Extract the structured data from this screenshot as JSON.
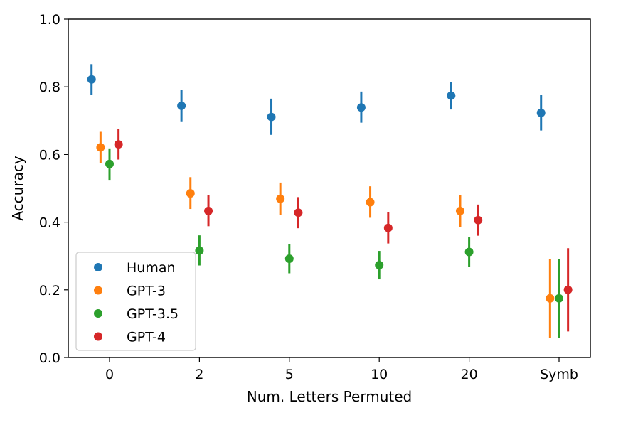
{
  "chart_data": {
    "type": "scatter",
    "title": "",
    "xlabel": "Num. Letters Permuted",
    "ylabel": "Accuracy",
    "categories": [
      "0",
      "2",
      "5",
      "10",
      "20",
      "Symb"
    ],
    "ylim": [
      0.0,
      1.0
    ],
    "yticks": [
      0.0,
      0.2,
      0.4,
      0.6,
      0.8,
      1.0
    ],
    "ytick_labels": [
      "0.0",
      "0.2",
      "0.4",
      "0.6",
      "0.8",
      "1.0"
    ],
    "grid": false,
    "legend_position": "lower-left",
    "error_bars": true,
    "series": [
      {
        "name": "Human",
        "color": "#1f77b4",
        "offset": -0.2,
        "values": [
          0.822,
          0.744,
          0.711,
          0.739,
          0.774,
          0.723
        ],
        "lower": [
          0.777,
          0.698,
          0.658,
          0.694,
          0.733,
          0.671
        ],
        "upper": [
          0.867,
          0.791,
          0.765,
          0.786,
          0.815,
          0.776
        ]
      },
      {
        "name": "GPT-3",
        "color": "#ff7f0e",
        "offset": -0.1,
        "values": [
          0.621,
          0.485,
          0.469,
          0.459,
          0.433,
          0.175
        ],
        "lower": [
          0.575,
          0.439,
          0.421,
          0.413,
          0.386,
          0.058
        ],
        "upper": [
          0.667,
          0.533,
          0.517,
          0.506,
          0.48,
          0.292
        ]
      },
      {
        "name": "GPT-3.5",
        "color": "#2ca02c",
        "offset": 0.0,
        "values": [
          0.572,
          0.316,
          0.292,
          0.273,
          0.312,
          0.175
        ],
        "lower": [
          0.525,
          0.272,
          0.249,
          0.231,
          0.268,
          0.058
        ],
        "upper": [
          0.618,
          0.361,
          0.335,
          0.315,
          0.355,
          0.292
        ]
      },
      {
        "name": "GPT-4",
        "color": "#d62728",
        "offset": 0.1,
        "values": [
          0.63,
          0.433,
          0.428,
          0.383,
          0.406,
          0.2
        ],
        "lower": [
          0.585,
          0.388,
          0.382,
          0.337,
          0.36,
          0.077
        ],
        "upper": [
          0.676,
          0.479,
          0.474,
          0.429,
          0.452,
          0.323
        ]
      }
    ]
  }
}
